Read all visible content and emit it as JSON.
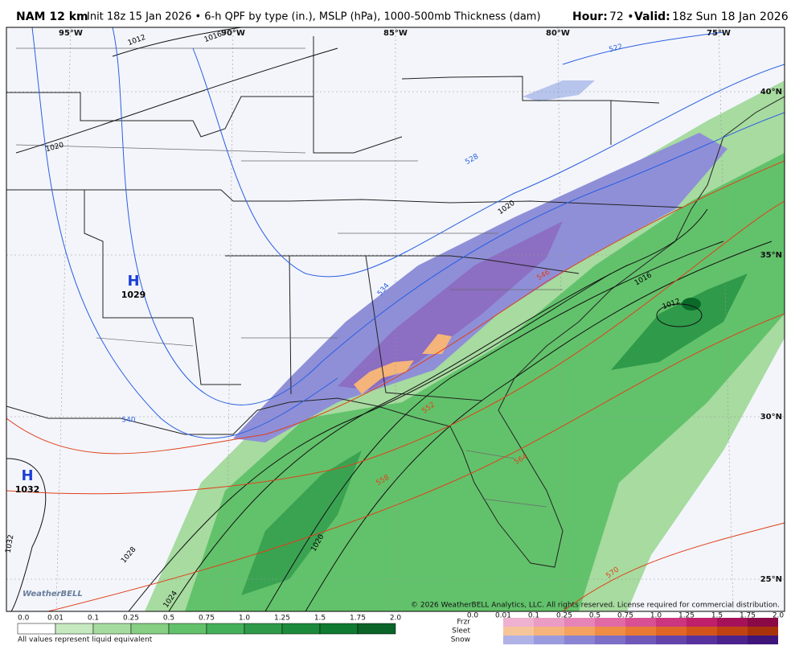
{
  "header": {
    "model": "NAM 12 km",
    "init": "Init 18z 15 Jan 2026 • 6-h QPF by type (in.), MSLP (hPa), 1000-500mb Thickness (dam)",
    "hour_label": "Hour:",
    "hour": "72 •",
    "valid_label": "Valid:",
    "valid": "18z Sun 18 Jan 2026"
  },
  "map": {
    "lon_labels": [
      "95°W",
      "90°W",
      "85°W",
      "80°W",
      "75°W"
    ],
    "lat_labels": [
      "40°N",
      "35°N",
      "30°N",
      "25°N"
    ],
    "highs": [
      {
        "symbol": "H",
        "pressure": "1029"
      },
      {
        "symbol": "H",
        "pressure": "1032"
      }
    ],
    "isobar_labels": [
      "1012",
      "1016",
      "1020",
      "1020",
      "1016",
      "1012",
      "1020",
      "1024",
      "1028",
      "1032"
    ],
    "thickness_labels": [
      "522",
      "528",
      "534",
      "540",
      "546",
      "552",
      "558",
      "564",
      "570"
    ],
    "watermark": "WeatherBELL",
    "copyright": "© 2026 WeatherBELL Analytics, LLC. All rights reserved. License required for commercial distribution."
  },
  "legend": {
    "rain_labels": [
      "0.0",
      "0.01",
      "0.1",
      "0.25",
      "0.5",
      "0.75",
      "1.0",
      "1.25",
      "1.5",
      "1.75",
      "2.0"
    ],
    "note": "All values represent liquid equivalent",
    "types": [
      "Frzr",
      "Sleet",
      "Snow"
    ],
    "type_labels": [
      "0.0",
      "0.01",
      "0.1",
      "0.25",
      "0.5",
      "0.75",
      "1.0",
      "1.25",
      "1.5",
      "1.75",
      "2.0"
    ]
  }
}
